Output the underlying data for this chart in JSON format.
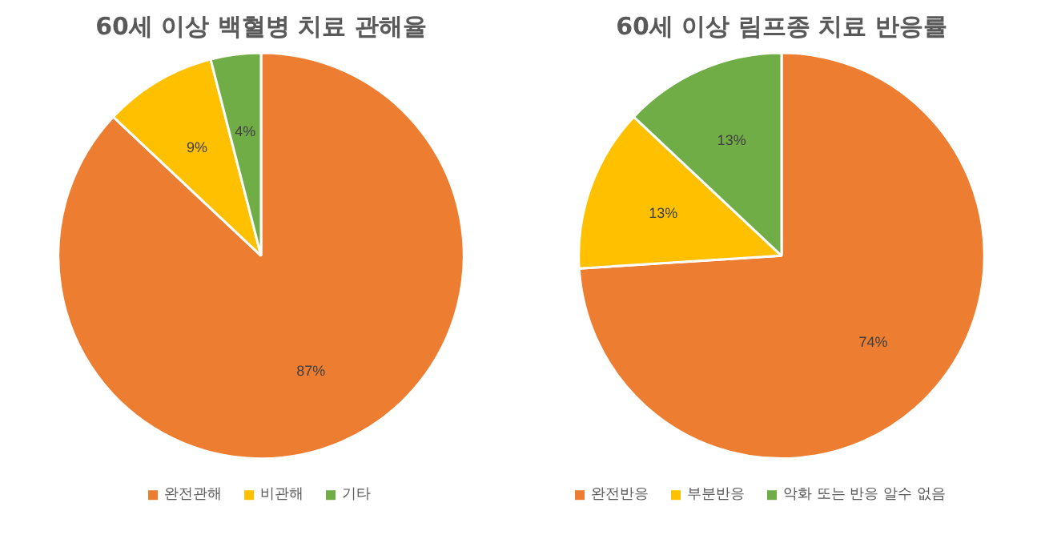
{
  "chart_data": [
    {
      "type": "pie",
      "title": "60세 이상 백혈병 치료 관해율",
      "categories": [
        "완전관해",
        "비관해",
        "기타"
      ],
      "values": [
        87,
        9,
        4
      ],
      "colors": [
        "#ed7d31",
        "#ffc000",
        "#70ad47"
      ],
      "value_labels": [
        "87%",
        "9%",
        "4%"
      ],
      "legend": "bottom"
    },
    {
      "type": "pie",
      "title": "60세 이상 림프종 치료 반응률",
      "categories": [
        "완전반응",
        "부분반응",
        "악화 또는 반응 알수 없음"
      ],
      "values": [
        74,
        13,
        13
      ],
      "colors": [
        "#ed7d31",
        "#ffc000",
        "#70ad47"
      ],
      "value_labels": [
        "74%",
        "13%",
        "13%"
      ],
      "legend": "bottom"
    }
  ]
}
